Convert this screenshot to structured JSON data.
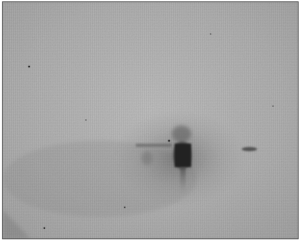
{
  "image": {
    "subject": "grainy-grayscale-photograph",
    "colors": {
      "background": "#b9b9b9",
      "dark_blot": "#262626",
      "border": "#3a3a3a"
    }
  }
}
